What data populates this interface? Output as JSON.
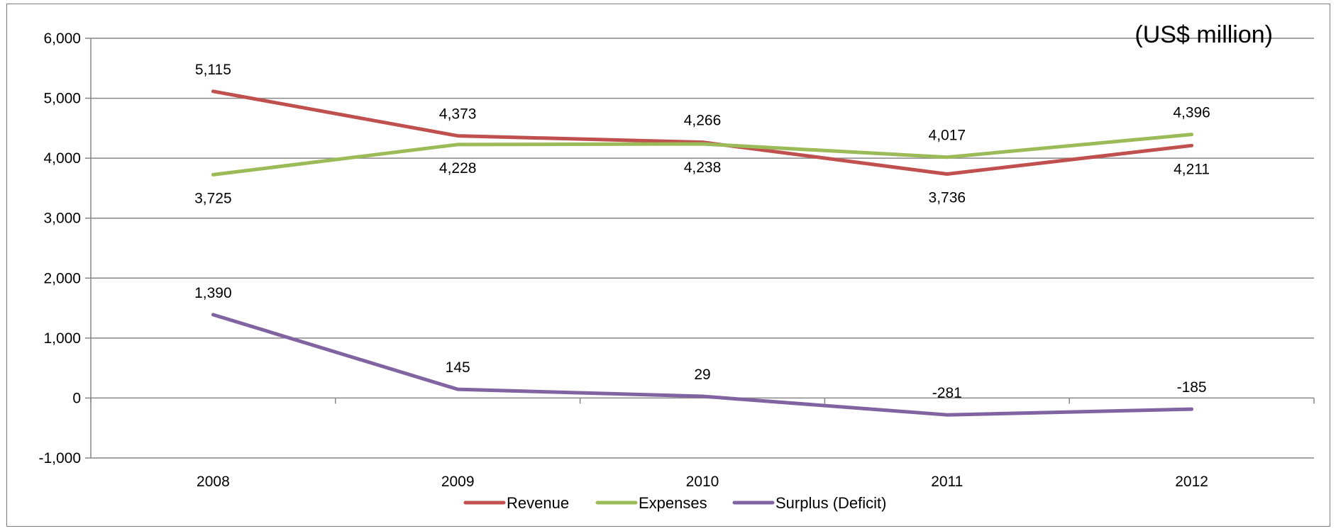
{
  "chart_data": {
    "type": "line",
    "title": "",
    "unit_note": "(US$ million)",
    "xlabel": "",
    "ylabel": "",
    "categories": [
      "2008",
      "2009",
      "2010",
      "2011",
      "2012"
    ],
    "ylim": [
      -1000,
      6000
    ],
    "yticks": [
      -1000,
      0,
      1000,
      2000,
      3000,
      4000,
      5000,
      6000
    ],
    "ytick_labels": [
      "-1,000",
      "0",
      "1,000",
      "2,000",
      "3,000",
      "4,000",
      "5,000",
      "6,000"
    ],
    "grid": true,
    "legend_position": "bottom",
    "series": [
      {
        "name": "Revenue",
        "color": "#c0504d",
        "values": [
          5115,
          4373,
          4266,
          3736,
          4211
        ],
        "labels": [
          "5,115",
          "4,373",
          "4,266",
          "3,736",
          "4,211"
        ]
      },
      {
        "name": "Expenses",
        "color": "#9bbb59",
        "values": [
          3725,
          4228,
          4238,
          4017,
          4396
        ],
        "labels": [
          "3,725",
          "4,228",
          "4,238",
          "4,017",
          "4,396"
        ]
      },
      {
        "name": "Surplus (Deficit)",
        "color": "#8064a2",
        "values": [
          1390,
          145,
          29,
          -281,
          -185
        ],
        "labels": [
          "1,390",
          "145",
          "29",
          "-281",
          "-185"
        ]
      }
    ]
  }
}
